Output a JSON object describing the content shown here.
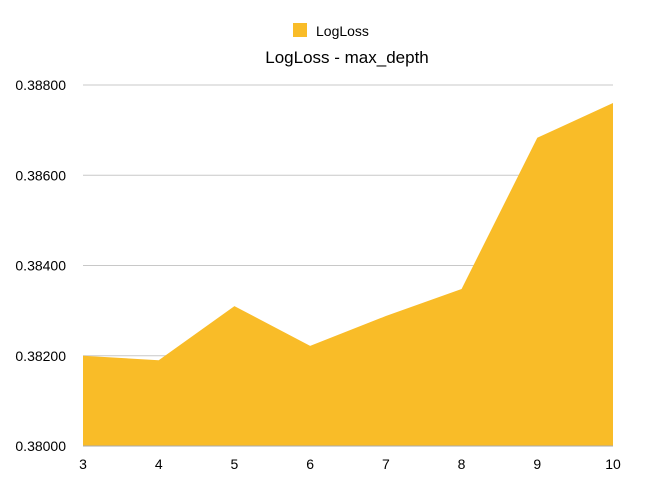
{
  "chart_data": {
    "type": "area",
    "title": "LogLoss - max_depth",
    "xlabel": "",
    "ylabel": "",
    "x": [
      3,
      4,
      5,
      6,
      7,
      8,
      9,
      10
    ],
    "series": [
      {
        "name": "LogLoss",
        "values": [
          0.382,
          0.3819,
          0.3831,
          0.38222,
          0.38288,
          0.38348,
          0.38683,
          0.3876
        ]
      }
    ],
    "ylim": [
      0.38,
      0.388
    ],
    "y_ticks": [
      "0.38000",
      "0.38200",
      "0.38400",
      "0.38600",
      "0.38800"
    ],
    "x_ticks": [
      "3",
      "4",
      "5",
      "6",
      "7",
      "8",
      "9",
      "10"
    ],
    "grid": true,
    "legend": "top-center",
    "colors": {
      "fill": "#F9BC28",
      "grid": "#C8C8C8",
      "axis": "#AAAAAA"
    }
  }
}
